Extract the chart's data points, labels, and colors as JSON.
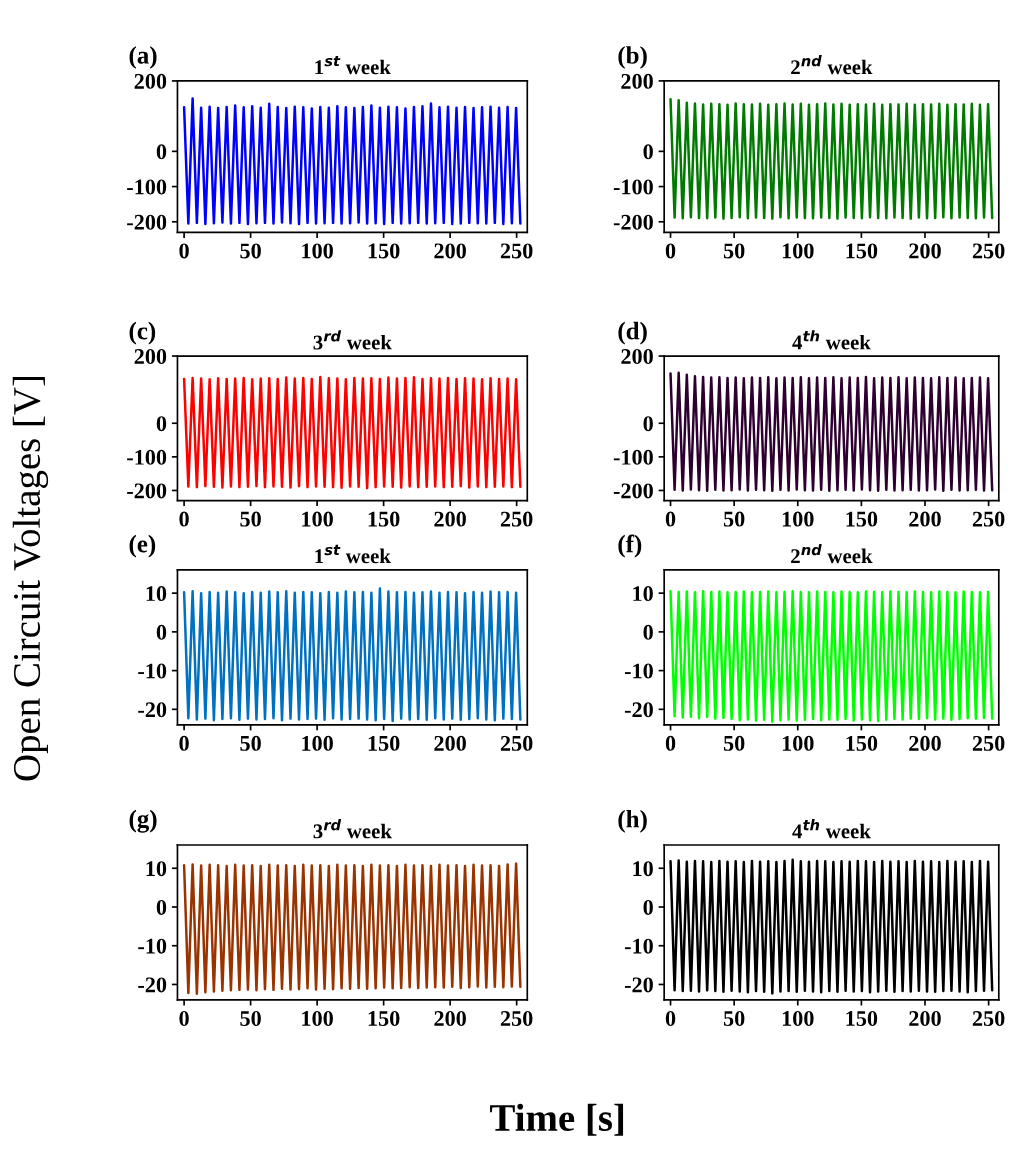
{
  "chart_data": [
    {
      "type": "line",
      "title": "(a)",
      "subtitle": "1$^{st}$ week",
      "ylabel": "Open Circuit Voltages [V]",
      "xlim": [
        -5,
        258
      ],
      "ylim": [
        -230,
        200
      ],
      "xticks": [
        0,
        50,
        100,
        150,
        200,
        250
      ],
      "yticks": [
        200,
        0,
        -100,
        -200
      ],
      "x": [
        0,
        3.2,
        6.4,
        9.6,
        12.8,
        16,
        19.2,
        22.4,
        25.6,
        28.8,
        32,
        35.2,
        38.4,
        41.6,
        44.8,
        48,
        51.2,
        54.4,
        57.6,
        60.8,
        64,
        67.2,
        70.4,
        73.6,
        76.8,
        80,
        83.2,
        86.4,
        89.6,
        92.8,
        96,
        99.2,
        102.4,
        105.6,
        108.8,
        112,
        115.2,
        118.4,
        121.6,
        124.8,
        128,
        131.2,
        134.4,
        137.6,
        140.8,
        144,
        147.2,
        150.4,
        153.6,
        156.8,
        160,
        163.2,
        166.4,
        169.6,
        172.8,
        176,
        179.2,
        182.4,
        185.6,
        188.8,
        192,
        195.2,
        198.4,
        201.6,
        204.8,
        208,
        211.2,
        214.4,
        217.6,
        220.8,
        224,
        227.2,
        230.4,
        233.6,
        236.8,
        240,
        243.2,
        246.4,
        249.6,
        252.8
      ],
      "series": [
        {
          "color": "#0000ff",
          "values": [
            125,
            -205,
            150,
            -203,
            124,
            -206,
            127,
            -204,
            123,
            -202,
            126,
            -205,
            130,
            -203,
            125,
            -206,
            128,
            -204,
            124,
            -203,
            135,
            -205,
            126,
            -202,
            123,
            -204,
            127,
            -206,
            125,
            -203,
            122,
            -205,
            126,
            -204,
            124,
            -203,
            128,
            -205,
            125,
            -204,
            123,
            -202,
            126,
            -205,
            130,
            -204,
            124,
            -206,
            127,
            -203,
            125,
            -205,
            122,
            -204,
            126,
            -203,
            128,
            -205,
            136,
            -204,
            125,
            -203,
            127,
            -206,
            124,
            -205,
            126,
            -203,
            123,
            -204,
            125,
            -205,
            127,
            -203,
            124,
            -206,
            126,
            -204,
            123,
            -205
          ]
        }
      ]
    },
    {
      "type": "line",
      "title": "(b)",
      "subtitle": "2$^{nd}$ week",
      "xlim": [
        -5,
        258
      ],
      "ylim": [
        -230,
        200
      ],
      "xticks": [
        0,
        50,
        100,
        150,
        200,
        250
      ],
      "yticks": [
        200,
        0,
        -100,
        -200
      ],
      "x": [
        0,
        3.2,
        6.4,
        9.6,
        12.8,
        16,
        19.2,
        22.4,
        25.6,
        28.8,
        32,
        35.2,
        38.4,
        41.6,
        44.8,
        48,
        51.2,
        54.4,
        57.6,
        60.8,
        64,
        67.2,
        70.4,
        73.6,
        76.8,
        80,
        83.2,
        86.4,
        89.6,
        92.8,
        96,
        99.2,
        102.4,
        105.6,
        108.8,
        112,
        115.2,
        118.4,
        121.6,
        124.8,
        128,
        131.2,
        134.4,
        137.6,
        140.8,
        144,
        147.2,
        150.4,
        153.6,
        156.8,
        160,
        163.2,
        166.4,
        169.6,
        172.8,
        176,
        179.2,
        182.4,
        185.6,
        188.8,
        192,
        195.2,
        198.4,
        201.6,
        204.8,
        208,
        211.2,
        214.4,
        217.6,
        220.8,
        224,
        227.2,
        230.4,
        233.6,
        236.8,
        240,
        243.2,
        246.4,
        249.6,
        252.8
      ],
      "series": [
        {
          "color": "#007a00",
          "values": [
            148,
            -188,
            145,
            -190,
            138,
            -187,
            136,
            -189,
            133,
            -190,
            135,
            -188,
            134,
            -191,
            132,
            -189,
            136,
            -187,
            134,
            -190,
            133,
            -188,
            135,
            -189,
            132,
            -191,
            134,
            -187,
            136,
            -190,
            133,
            -188,
            135,
            -189,
            132,
            -190,
            134,
            -188,
            136,
            -189,
            133,
            -191,
            135,
            -188,
            132,
            -189,
            134,
            -190,
            133,
            -187,
            135,
            -189,
            132,
            -190,
            134,
            -188,
            133,
            -189,
            135,
            -191,
            132,
            -188,
            134,
            -190,
            133,
            -189,
            135,
            -187,
            132,
            -190,
            134,
            -188,
            133,
            -189,
            135,
            -190,
            132,
            -188,
            134,
            -189
          ]
        }
      ]
    },
    {
      "type": "line",
      "title": "(c)",
      "subtitle": "3$^{rd}$ week",
      "xlim": [
        -5,
        258
      ],
      "ylim": [
        -230,
        200
      ],
      "xticks": [
        0,
        50,
        100,
        150,
        200,
        250
      ],
      "yticks": [
        200,
        0,
        -100,
        -200
      ],
      "x": [
        0,
        3.2,
        6.4,
        9.6,
        12.8,
        16,
        19.2,
        22.4,
        25.6,
        28.8,
        32,
        35.2,
        38.4,
        41.6,
        44.8,
        48,
        51.2,
        54.4,
        57.6,
        60.8,
        64,
        67.2,
        70.4,
        73.6,
        76.8,
        80,
        83.2,
        86.4,
        89.6,
        92.8,
        96,
        99.2,
        102.4,
        105.6,
        108.8,
        112,
        115.2,
        118.4,
        121.6,
        124.8,
        128,
        131.2,
        134.4,
        137.6,
        140.8,
        144,
        147.2,
        150.4,
        153.6,
        156.8,
        160,
        163.2,
        166.4,
        169.6,
        172.8,
        176,
        179.2,
        182.4,
        185.6,
        188.8,
        192,
        195.2,
        198.4,
        201.6,
        204.8,
        208,
        211.2,
        214.4,
        217.6,
        220.8,
        224,
        227.2,
        230.4,
        233.6,
        236.8,
        240,
        243.2,
        246.4,
        249.6,
        252.8
      ],
      "series": [
        {
          "color": "#ff0000",
          "values": [
            132,
            -188,
            135,
            -190,
            133,
            -187,
            131,
            -189,
            134,
            -191,
            132,
            -188,
            133,
            -190,
            135,
            -189,
            131,
            -187,
            133,
            -190,
            134,
            -188,
            132,
            -189,
            136,
            -191,
            133,
            -187,
            135,
            -190,
            132,
            -188,
            138,
            -189,
            134,
            -190,
            133,
            -192,
            131,
            -188,
            135,
            -189,
            133,
            -193,
            134,
            -190,
            132,
            -188,
            136,
            -189,
            133,
            -191,
            135,
            -188,
            137,
            -190,
            132,
            -189,
            134,
            -188,
            133,
            -190,
            135,
            -189,
            132,
            -187,
            134,
            -191,
            133,
            -188,
            131,
            -190,
            134,
            -189,
            132,
            -188,
            133,
            -190,
            131,
            -189
          ]
        }
      ]
    },
    {
      "type": "line",
      "title": "(d)",
      "subtitle": "4$^{th}$ week",
      "xlim": [
        -5,
        258
      ],
      "ylim": [
        -230,
        200
      ],
      "xticks": [
        0,
        50,
        100,
        150,
        200,
        250
      ],
      "yticks": [
        200,
        0,
        -100,
        -200
      ],
      "x": [
        0,
        3.2,
        6.4,
        9.6,
        12.8,
        16,
        19.2,
        22.4,
        25.6,
        28.8,
        32,
        35.2,
        38.4,
        41.6,
        44.8,
        48,
        51.2,
        54.4,
        57.6,
        60.8,
        64,
        67.2,
        70.4,
        73.6,
        76.8,
        80,
        83.2,
        86.4,
        89.6,
        92.8,
        96,
        99.2,
        102.4,
        105.6,
        108.8,
        112,
        115.2,
        118.4,
        121.6,
        124.8,
        128,
        131.2,
        134.4,
        137.6,
        140.8,
        144,
        147.2,
        150.4,
        153.6,
        156.8,
        160,
        163.2,
        166.4,
        169.6,
        172.8,
        176,
        179.2,
        182.4,
        185.6,
        188.8,
        192,
        195.2,
        198.4,
        201.6,
        204.8,
        208,
        211.2,
        214.4,
        217.6,
        220.8,
        224,
        227.2,
        230.4,
        233.6,
        236.8,
        240,
        243.2,
        246.4,
        249.6,
        252.8
      ],
      "series": [
        {
          "color": "#2e0030",
          "values": [
            148,
            -198,
            150,
            -200,
            144,
            -197,
            140,
            -199,
            138,
            -201,
            136,
            -198,
            137,
            -200,
            135,
            -199,
            136,
            -197,
            134,
            -200,
            136,
            -198,
            135,
            -199,
            137,
            -201,
            134,
            -198,
            136,
            -200,
            135,
            -197,
            137,
            -199,
            134,
            -200,
            136,
            -198,
            135,
            -201,
            137,
            -199,
            134,
            -198,
            136,
            -200,
            135,
            -197,
            138,
            -199,
            134,
            -201,
            136,
            -198,
            135,
            -200,
            137,
            -199,
            134,
            -198,
            136,
            -200,
            135,
            -199,
            134,
            -197,
            137,
            -201,
            135,
            -198,
            136,
            -200,
            134,
            -199,
            135,
            -198,
            136,
            -200,
            134,
            -199
          ]
        }
      ]
    },
    {
      "type": "line",
      "title": "(e)",
      "subtitle": "1$^{st}$ week",
      "xlim": [
        -5,
        258
      ],
      "ylim": [
        -24,
        16
      ],
      "xticks": [
        0,
        50,
        100,
        150,
        200,
        250
      ],
      "yticks": [
        10,
        0,
        -10,
        -20
      ],
      "x": [
        0,
        3.2,
        6.4,
        9.6,
        12.8,
        16,
        19.2,
        22.4,
        25.6,
        28.8,
        32,
        35.2,
        38.4,
        41.6,
        44.8,
        48,
        51.2,
        54.4,
        57.6,
        60.8,
        64,
        67.2,
        70.4,
        73.6,
        76.8,
        80,
        83.2,
        86.4,
        89.6,
        92.8,
        96,
        99.2,
        102.4,
        105.6,
        108.8,
        112,
        115.2,
        118.4,
        121.6,
        124.8,
        128,
        131.2,
        134.4,
        137.6,
        140.8,
        144,
        147.2,
        150.4,
        153.6,
        156.8,
        160,
        163.2,
        166.4,
        169.6,
        172.8,
        176,
        179.2,
        182.4,
        185.6,
        188.8,
        192,
        195.2,
        198.4,
        201.6,
        204.8,
        208,
        211.2,
        214.4,
        217.6,
        220.8,
        224,
        227.2,
        230.4,
        233.6,
        236.8,
        240,
        243.2,
        246.4,
        249.6,
        252.8
      ],
      "series": [
        {
          "color": "#0070c0",
          "values": [
            10.2,
            -22.3,
            10.5,
            -22.6,
            10,
            -22.4,
            10.3,
            -22.8,
            10.1,
            -22.5,
            10.4,
            -22.3,
            10.2,
            -22.7,
            10,
            -22.4,
            10.3,
            -22.6,
            10.1,
            -22.5,
            10.4,
            -22.3,
            10.2,
            -22.8,
            10.5,
            -22.4,
            10.1,
            -22.6,
            10.3,
            -22.5,
            10.2,
            -22.4,
            10,
            -22.7,
            10.3,
            -22.3,
            10.1,
            -22.6,
            10.4,
            -22.5,
            10.2,
            -22.4,
            10.3,
            -22.6,
            10.1,
            -22.8,
            11.2,
            -22.5,
            10.4,
            -23,
            10.2,
            -22.4,
            10.3,
            -22.6,
            10.1,
            -22.5,
            10.2,
            -22.7,
            10.4,
            -22.3,
            10.1,
            -22.6,
            10.3,
            -22.4,
            10.2,
            -22.7,
            10,
            -22.5,
            10.3,
            -22.3,
            10.1,
            -22.6,
            10.4,
            -22.8,
            10.2,
            -22.4,
            10.3,
            -22.5,
            10.1,
            -22.6
          ]
        }
      ]
    },
    {
      "type": "line",
      "title": "(f)",
      "subtitle": "2$^{nd}$ week",
      "xlim": [
        -5,
        258
      ],
      "ylim": [
        -24,
        16
      ],
      "xticks": [
        0,
        50,
        100,
        150,
        200,
        250
      ],
      "yticks": [
        10,
        0,
        -10,
        -20
      ],
      "x": [
        0,
        3.2,
        6.4,
        9.6,
        12.8,
        16,
        19.2,
        22.4,
        25.6,
        28.8,
        32,
        35.2,
        38.4,
        41.6,
        44.8,
        48,
        51.2,
        54.4,
        57.6,
        60.8,
        64,
        67.2,
        70.4,
        73.6,
        76.8,
        80,
        83.2,
        86.4,
        89.6,
        92.8,
        96,
        99.2,
        102.4,
        105.6,
        108.8,
        112,
        115.2,
        118.4,
        121.6,
        124.8,
        128,
        131.2,
        134.4,
        137.6,
        140.8,
        144,
        147.2,
        150.4,
        153.6,
        156.8,
        160,
        163.2,
        166.4,
        169.6,
        172.8,
        176,
        179.2,
        182.4,
        185.6,
        188.8,
        192,
        195.2,
        198.4,
        201.6,
        204.8,
        208,
        211.2,
        214.4,
        217.6,
        220.8,
        224,
        227.2,
        230.4,
        233.6,
        236.8,
        240,
        243.2,
        246.4,
        249.6,
        252.8
      ],
      "series": [
        {
          "color": "#00ff00",
          "values": [
            10.5,
            -21.8,
            10.3,
            -22.1,
            10.4,
            -21.9,
            10.2,
            -22.3,
            10.5,
            -22,
            10.3,
            -22.4,
            10.4,
            -22.2,
            10.2,
            -22.5,
            10.3,
            -22.8,
            10.4,
            -22.6,
            10.2,
            -22.9,
            10.3,
            -22.7,
            10.4,
            -23.2,
            10.2,
            -22.8,
            10.3,
            -22.6,
            10.5,
            -22.9,
            10.3,
            -22.7,
            10.2,
            -22.5,
            10.4,
            -22.8,
            10.3,
            -22.6,
            10.2,
            -22.7,
            10.4,
            -22.5,
            10.3,
            -22.9,
            10.2,
            -22.6,
            10.4,
            -22.8,
            10.3,
            -23,
            10.2,
            -22.7,
            10.4,
            -22.5,
            10.3,
            -22.6,
            10.2,
            -22.4,
            10.4,
            -22.5,
            10.3,
            -22.3,
            10.2,
            -22.6,
            10.4,
            -22.4,
            10.3,
            -22.7,
            10.2,
            -22.5,
            10.4,
            -22.3,
            10.3,
            -22.4,
            10.2,
            -22.2,
            10.3,
            -22.4
          ]
        }
      ]
    },
    {
      "type": "line",
      "title": "(g)",
      "subtitle": "3$^{rd}$ week",
      "xlim": [
        -5,
        258
      ],
      "ylim": [
        -24,
        16
      ],
      "xticks": [
        0,
        50,
        100,
        150,
        200,
        250
      ],
      "yticks": [
        10,
        0,
        -10,
        -20
      ],
      "x": [
        0,
        3.2,
        6.4,
        9.6,
        12.8,
        16,
        19.2,
        22.4,
        25.6,
        28.8,
        32,
        35.2,
        38.4,
        41.6,
        44.8,
        48,
        51.2,
        54.4,
        57.6,
        60.8,
        64,
        67.2,
        70.4,
        73.6,
        76.8,
        80,
        83.2,
        86.4,
        89.6,
        92.8,
        96,
        99.2,
        102.4,
        105.6,
        108.8,
        112,
        115.2,
        118.4,
        121.6,
        124.8,
        128,
        131.2,
        134.4,
        137.6,
        140.8,
        144,
        147.2,
        150.4,
        153.6,
        156.8,
        160,
        163.2,
        166.4,
        169.6,
        172.8,
        176,
        179.2,
        182.4,
        185.6,
        188.8,
        192,
        195.2,
        198.4,
        201.6,
        204.8,
        208,
        211.2,
        214.4,
        217.6,
        220.8,
        224,
        227.2,
        230.4,
        233.6,
        236.8,
        240,
        243.2,
        246.4,
        249.6,
        252.8
      ],
      "series": [
        {
          "color": "#993300",
          "values": [
            10.8,
            -22.2,
            11,
            -22.4,
            10.7,
            -22,
            10.9,
            -21.8,
            10.8,
            -21.6,
            10.6,
            -21.5,
            10.9,
            -21.4,
            10.7,
            -21.3,
            10.8,
            -21.5,
            10.6,
            -21.2,
            10.9,
            -21.4,
            10.7,
            -21.1,
            10.8,
            -21.3,
            10.6,
            -21.2,
            10.9,
            -21,
            10.7,
            -21.3,
            10.8,
            -21.1,
            10.6,
            -21.2,
            10.9,
            -21,
            10.7,
            -21.1,
            10.8,
            -20.9,
            10.6,
            -21.1,
            10.9,
            -21,
            10.7,
            -20.8,
            10.8,
            -21,
            10.6,
            -20.9,
            10.9,
            -20.7,
            10.7,
            -20.9,
            10.8,
            -20.8,
            10.6,
            -20.7,
            10.9,
            -20.8,
            10.7,
            -20.6,
            10.8,
            -20.9,
            10.6,
            -20.7,
            10.9,
            -20.5,
            10.7,
            -20.8,
            10.8,
            -20.6,
            10.6,
            -20.7,
            11,
            -20.5,
            11.2,
            -20.6
          ]
        }
      ]
    },
    {
      "type": "line",
      "title": "(h)",
      "subtitle": "4$^{th}$ week",
      "xlabel": "Time [s]",
      "xlim": [
        -5,
        258
      ],
      "ylim": [
        -24,
        16
      ],
      "xticks": [
        0,
        50,
        100,
        150,
        200,
        250
      ],
      "yticks": [
        10,
        0,
        -10,
        -20
      ],
      "x": [
        0,
        3.2,
        6.4,
        9.6,
        12.8,
        16,
        19.2,
        22.4,
        25.6,
        28.8,
        32,
        35.2,
        38.4,
        41.6,
        44.8,
        48,
        51.2,
        54.4,
        57.6,
        60.8,
        64,
        67.2,
        70.4,
        73.6,
        76.8,
        80,
        83.2,
        86.4,
        89.6,
        92.8,
        96,
        99.2,
        102.4,
        105.6,
        108.8,
        112,
        115.2,
        118.4,
        121.6,
        124.8,
        128,
        131.2,
        134.4,
        137.6,
        140.8,
        144,
        147.2,
        150.4,
        153.6,
        156.8,
        160,
        163.2,
        166.4,
        169.6,
        172.8,
        176,
        179.2,
        182.4,
        185.6,
        188.8,
        192,
        195.2,
        198.4,
        201.6,
        204.8,
        208,
        211.2,
        214.4,
        217.6,
        220.8,
        224,
        227.2,
        230.4,
        233.6,
        236.8,
        240,
        243.2,
        246.4,
        249.6,
        252.8
      ],
      "series": [
        {
          "color": "#000000",
          "values": [
            11.8,
            -21.5,
            12,
            -21.7,
            11.7,
            -21.6,
            11.9,
            -21.8,
            11.8,
            -21.5,
            11.6,
            -21.7,
            11.9,
            -21.9,
            11.7,
            -21.6,
            11.8,
            -21.8,
            11.6,
            -22,
            11.9,
            -21.7,
            11.7,
            -21.9,
            11.8,
            -22.3,
            11.6,
            -21.8,
            11.9,
            -21.7,
            12.2,
            -21.9,
            11.8,
            -21.6,
            11.7,
            -21.8,
            11.9,
            -22,
            11.8,
            -21.7,
            11.6,
            -21.9,
            11.8,
            -21.6,
            11.7,
            -21.8,
            11.9,
            -21.7,
            11.8,
            -22,
            11.6,
            -21.8,
            11.9,
            -21.6,
            11.7,
            -21.9,
            11.8,
            -21.7,
            11.6,
            -21.8,
            11.9,
            -21.6,
            11.7,
            -21.8,
            11.8,
            -21.9,
            11.6,
            -21.7,
            11.9,
            -21.6,
            11.7,
            -21.8,
            11.8,
            -22,
            11.6,
            -21.7,
            11.9,
            -21.6,
            11.7,
            -21.5
          ]
        }
      ]
    }
  ]
}
